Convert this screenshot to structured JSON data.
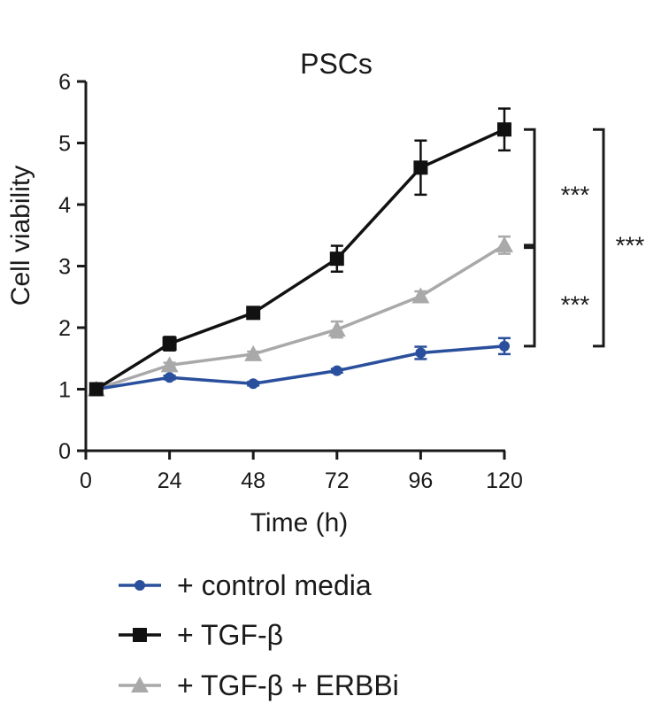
{
  "chart_data": {
    "type": "line",
    "title": "PSCs",
    "xlabel": "Time (h)",
    "ylabel": "Cell viability",
    "xlim": [
      0,
      120
    ],
    "ylim": [
      0,
      6
    ],
    "x": [
      3,
      24,
      48,
      72,
      96,
      120
    ],
    "xticks": [
      0,
      24,
      48,
      72,
      96,
      120
    ],
    "xtick_labels": [
      "0",
      "24",
      "48",
      "72",
      "96",
      "120"
    ],
    "yticks": [
      0,
      1,
      2,
      3,
      4,
      5,
      6
    ],
    "ytick_labels": [
      "0",
      "1",
      "2",
      "3",
      "4",
      "5",
      "6"
    ],
    "series": [
      {
        "name": "+ control media",
        "marker": "circle",
        "color": "#2a4f9c",
        "values": [
          1.0,
          1.19,
          1.09,
          1.3,
          1.59,
          1.7
        ],
        "errors": [
          0.03,
          0.03,
          0.03,
          0.03,
          0.1,
          0.13
        ]
      },
      {
        "name": "+ TGF-β",
        "marker": "square",
        "color": "#111111",
        "values": [
          1.0,
          1.74,
          2.24,
          3.12,
          4.6,
          5.22
        ],
        "errors": [
          0.03,
          0.11,
          0.05,
          0.21,
          0.44,
          0.34
        ]
      },
      {
        "name": "+ TGF-β + ERBBi",
        "marker": "triangle",
        "color": "#a9a9a9",
        "values": [
          1.0,
          1.39,
          1.57,
          1.97,
          2.51,
          3.34
        ],
        "errors": [
          0.03,
          0.04,
          0.04,
          0.13,
          0.08,
          0.14
        ]
      }
    ],
    "significance": [
      {
        "label": "***",
        "from_value": 5.22,
        "to_value": 3.34
      },
      {
        "label": "***",
        "from_value": 3.3,
        "to_value": 1.7
      },
      {
        "label": "***",
        "from_value": 5.22,
        "to_value": 1.7
      }
    ]
  }
}
